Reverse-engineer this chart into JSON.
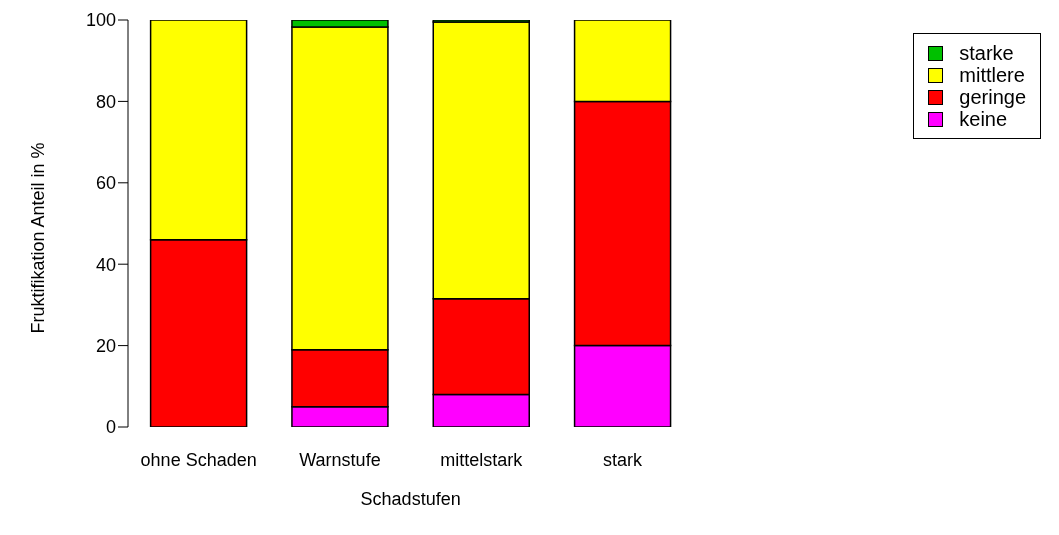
{
  "chart_data": {
    "type": "bar",
    "stacked": true,
    "xlabel": "Schadstufen",
    "ylabel": "Fruktifikation Anteil in  %",
    "categories": [
      "ohne Schaden",
      "Warnstufe",
      "mittelstark",
      "stark"
    ],
    "series": [
      {
        "name": "keine",
        "color": "#ff00ff",
        "values": [
          0,
          5,
          8,
          20
        ]
      },
      {
        "name": "geringe",
        "color": "#ff0000",
        "values": [
          46,
          14,
          23.5,
          60
        ]
      },
      {
        "name": "mittlere",
        "color": "#ffff00",
        "values": [
          54,
          79.3,
          68,
          20
        ]
      },
      {
        "name": "starke",
        "color": "#00c000",
        "values": [
          0,
          1.7,
          0.5,
          0
        ]
      }
    ],
    "ylim": [
      0,
      100
    ],
    "yticks": [
      0,
      20,
      40,
      60,
      80,
      100
    ],
    "grid": false,
    "legend": "top right"
  }
}
